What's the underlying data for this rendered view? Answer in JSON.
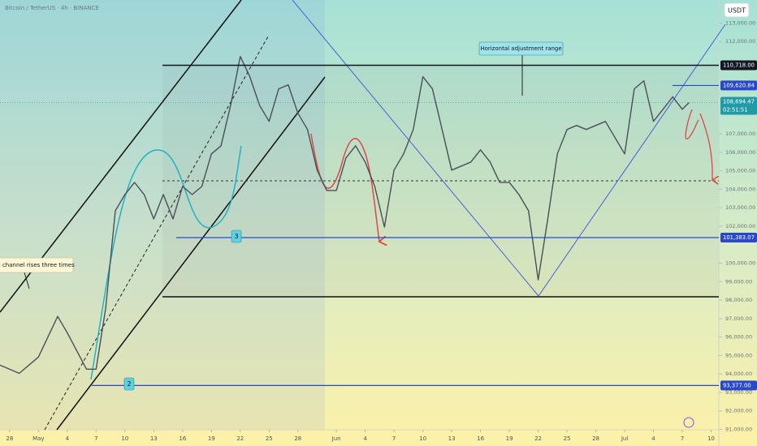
{
  "chart_data": {
    "type": "line",
    "title": "Bitcoin / TetherUS · 4h · BINANCE",
    "currency": "USDT",
    "x": [
      -1,
      1,
      3,
      5,
      6,
      8,
      9,
      10,
      11,
      12,
      13,
      14,
      15,
      16,
      17,
      18,
      19,
      20,
      21,
      22,
      23,
      24,
      25,
      26,
      27,
      28,
      29,
      30,
      31,
      32,
      33,
      34,
      35,
      36,
      37,
      38,
      39,
      40,
      41,
      42,
      43,
      44,
      45,
      46,
      47,
      48,
      49,
      50,
      51,
      52,
      53,
      54,
      55,
      56,
      57,
      58,
      59,
      60,
      61,
      62,
      63,
      64,
      65,
      66,
      67,
      68,
      69,
      70,
      70.7
    ],
    "series": [
      {
        "name": "BTCUSDT",
        "color": "#4a4f58",
        "values": [
          94476,
          94036,
          94916,
          97116,
          96236,
          94256,
          94256,
          97556,
          102836,
          103716,
          104376,
          103716,
          102396,
          103716,
          102396,
          104156,
          103716,
          104156,
          105916,
          106356,
          108556,
          111196,
          110096,
          108556,
          107676,
          109436,
          109656,
          108116,
          107236,
          105036,
          103936,
          103936,
          105696,
          106356,
          105476,
          104156,
          101955,
          105036,
          105916,
          107236,
          110096,
          109436,
          107236,
          105036,
          105256,
          105476,
          106136,
          105476,
          104376,
          104376,
          103716,
          102836,
          99096,
          102396,
          105916,
          107236,
          107456,
          107236,
          107456,
          107676,
          106796,
          105916,
          109436,
          109876,
          107676,
          108336,
          109006,
          108336,
          108694
        ]
      }
    ],
    "xlim": [
      -1,
      73.8
    ],
    "ylim": [
      90100,
      114250
    ],
    "xticks": [
      {
        "value": 0,
        "label": "28"
      },
      {
        "value": 3,
        "label": "May"
      },
      {
        "value": 6,
        "label": "4"
      },
      {
        "value": 9,
        "label": "7"
      },
      {
        "value": 12,
        "label": "10"
      },
      {
        "value": 15,
        "label": "13"
      },
      {
        "value": 18,
        "label": "16"
      },
      {
        "value": 21,
        "label": "19"
      },
      {
        "value": 24,
        "label": "22"
      },
      {
        "value": 27,
        "label": "25"
      },
      {
        "value": 30,
        "label": "28"
      },
      {
        "value": 34,
        "label": "Jun"
      },
      {
        "value": 37,
        "label": "4"
      },
      {
        "value": 40,
        "label": "7"
      },
      {
        "value": 43,
        "label": "10"
      },
      {
        "value": 46,
        "label": "13"
      },
      {
        "value": 49,
        "label": "16"
      },
      {
        "value": 52,
        "label": "19"
      },
      {
        "value": 55,
        "label": "22"
      },
      {
        "value": 58,
        "label": "25"
      },
      {
        "value": 61,
        "label": "28"
      },
      {
        "value": 64,
        "label": "Jul"
      },
      {
        "value": 67,
        "label": "4"
      },
      {
        "value": 70,
        "label": "7"
      },
      {
        "value": 73,
        "label": "10"
      }
    ],
    "yticks": [
      {
        "value": 91000,
        "label": "91,000.00"
      },
      {
        "value": 92000,
        "label": "92,000.00"
      },
      {
        "value": 93000,
        "label": "93,000.00"
      },
      {
        "value": 94000,
        "label": "94,000.00"
      },
      {
        "value": 95000,
        "label": "95,000.00"
      },
      {
        "value": 96000,
        "label": "96,000.00"
      },
      {
        "value": 97000,
        "label": "97,000.00"
      },
      {
        "value": 98000,
        "label": "98,000.00"
      },
      {
        "value": 99000,
        "label": "99,000.00"
      },
      {
        "value": 100000,
        "label": "100,000.00"
      },
      {
        "value": 102000,
        "label": "102,000.00"
      },
      {
        "value": 103000,
        "label": "103,000.00"
      },
      {
        "value": 104000,
        "label": "104,000.00"
      },
      {
        "value": 105000,
        "label": "105,000.00"
      },
      {
        "value": 106000,
        "label": "106,000.00"
      },
      {
        "value": 107000,
        "label": "107,000.00"
      },
      {
        "value": 112000,
        "label": "112,000.00"
      },
      {
        "value": 113000,
        "label": "113,000.00"
      }
    ],
    "levels": [
      {
        "value": 110718,
        "label": "110,718.00",
        "color": "#131722"
      },
      {
        "value": 109620.84,
        "label": "109,620.84",
        "color": "#2949c9"
      },
      {
        "value": 101383.07,
        "label": "101,383.07",
        "color": "#2949c9"
      },
      {
        "value": 93377,
        "label": "93,377.00",
        "color": "#2949c9"
      }
    ],
    "last_price": {
      "value": 108694.47,
      "label": "108,694.47",
      "color": "#1f9aa6"
    },
    "countdown": "02:51:51",
    "annotations": [
      "Horizontal adjustment range",
      "d channel rises three times",
      "3",
      "2"
    ]
  }
}
